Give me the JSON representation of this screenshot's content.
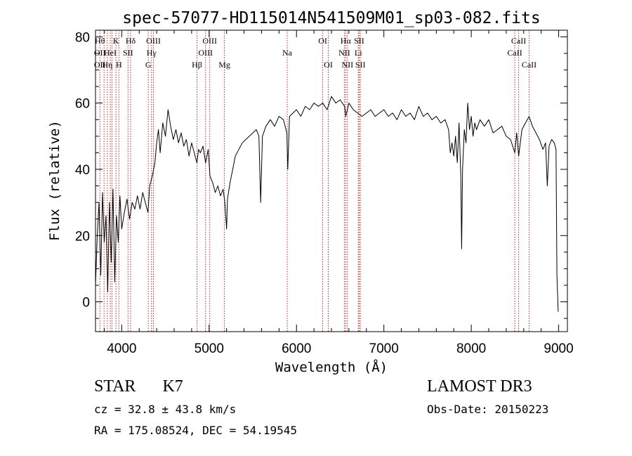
{
  "chart_data": {
    "type": "line",
    "title": "spec-57077-HD115014N541509M01_sp03-082.fits",
    "xlabel": "Wavelength (Å)",
    "ylabel": "Flux (relative)",
    "xlim": [
      3700,
      9100
    ],
    "ylim": [
      -9,
      82
    ],
    "xticks": [
      4000,
      5000,
      6000,
      7000,
      8000,
      9000
    ],
    "yticks": [
      0,
      20,
      40,
      60,
      80
    ],
    "line_color": "#000000",
    "marker_color": "#c0281e",
    "series": [
      {
        "name": "spectrum",
        "points": [
          [
            3700,
            5
          ],
          [
            3720,
            20
          ],
          [
            3740,
            30
          ],
          [
            3760,
            8
          ],
          [
            3780,
            33
          ],
          [
            3800,
            18
          ],
          [
            3820,
            26
          ],
          [
            3840,
            3
          ],
          [
            3860,
            30
          ],
          [
            3880,
            12
          ],
          [
            3900,
            34
          ],
          [
            3920,
            6
          ],
          [
            3940,
            26
          ],
          [
            3960,
            18
          ],
          [
            3980,
            32
          ],
          [
            4000,
            22
          ],
          [
            4030,
            27
          ],
          [
            4060,
            31
          ],
          [
            4090,
            25
          ],
          [
            4120,
            30
          ],
          [
            4150,
            28
          ],
          [
            4180,
            32
          ],
          [
            4210,
            28
          ],
          [
            4240,
            33
          ],
          [
            4270,
            30
          ],
          [
            4300,
            27
          ],
          [
            4320,
            35
          ],
          [
            4350,
            38
          ],
          [
            4380,
            42
          ],
          [
            4400,
            48
          ],
          [
            4420,
            52
          ],
          [
            4440,
            45
          ],
          [
            4470,
            54
          ],
          [
            4500,
            50
          ],
          [
            4530,
            58
          ],
          [
            4560,
            53
          ],
          [
            4590,
            49
          ],
          [
            4620,
            52
          ],
          [
            4650,
            48
          ],
          [
            4680,
            51
          ],
          [
            4710,
            47
          ],
          [
            4740,
            49
          ],
          [
            4770,
            44
          ],
          [
            4800,
            48
          ],
          [
            4830,
            45
          ],
          [
            4860,
            42
          ],
          [
            4880,
            46
          ],
          [
            4900,
            45
          ],
          [
            4930,
            47
          ],
          [
            4960,
            42
          ],
          [
            4990,
            46
          ],
          [
            5010,
            38
          ],
          [
            5040,
            36
          ],
          [
            5070,
            33
          ],
          [
            5100,
            35
          ],
          [
            5130,
            32
          ],
          [
            5160,
            34
          ],
          [
            5180,
            30
          ],
          [
            5200,
            22
          ],
          [
            5210,
            31
          ],
          [
            5240,
            36
          ],
          [
            5270,
            40
          ],
          [
            5300,
            44
          ],
          [
            5340,
            46
          ],
          [
            5380,
            48
          ],
          [
            5420,
            49
          ],
          [
            5460,
            50
          ],
          [
            5500,
            51
          ],
          [
            5540,
            52
          ],
          [
            5570,
            50
          ],
          [
            5590,
            30
          ],
          [
            5610,
            50
          ],
          [
            5650,
            53
          ],
          [
            5700,
            55
          ],
          [
            5750,
            53
          ],
          [
            5800,
            56
          ],
          [
            5850,
            55
          ],
          [
            5890,
            51
          ],
          [
            5900,
            40
          ],
          [
            5920,
            56
          ],
          [
            5960,
            57
          ],
          [
            6000,
            58
          ],
          [
            6050,
            56
          ],
          [
            6100,
            59
          ],
          [
            6150,
            58
          ],
          [
            6200,
            60
          ],
          [
            6250,
            59
          ],
          [
            6300,
            60
          ],
          [
            6350,
            58
          ],
          [
            6400,
            62
          ],
          [
            6450,
            60
          ],
          [
            6500,
            61
          ],
          [
            6550,
            59
          ],
          [
            6563,
            56
          ],
          [
            6600,
            60
          ],
          [
            6650,
            58
          ],
          [
            6700,
            57
          ],
          [
            6750,
            56
          ],
          [
            6800,
            57
          ],
          [
            6850,
            58
          ],
          [
            6900,
            56
          ],
          [
            6950,
            57
          ],
          [
            7000,
            58
          ],
          [
            7050,
            56
          ],
          [
            7100,
            57
          ],
          [
            7150,
            55
          ],
          [
            7200,
            58
          ],
          [
            7250,
            56
          ],
          [
            7300,
            57
          ],
          [
            7350,
            55
          ],
          [
            7400,
            59
          ],
          [
            7450,
            56
          ],
          [
            7500,
            57
          ],
          [
            7550,
            55
          ],
          [
            7600,
            56
          ],
          [
            7650,
            54
          ],
          [
            7700,
            55
          ],
          [
            7740,
            52
          ],
          [
            7760,
            45
          ],
          [
            7780,
            48
          ],
          [
            7800,
            44
          ],
          [
            7820,
            50
          ],
          [
            7840,
            42
          ],
          [
            7860,
            54
          ],
          [
            7880,
            38
          ],
          [
            7890,
            16
          ],
          [
            7900,
            40
          ],
          [
            7920,
            52
          ],
          [
            7940,
            48
          ],
          [
            7960,
            60
          ],
          [
            7980,
            52
          ],
          [
            8000,
            56
          ],
          [
            8020,
            50
          ],
          [
            8040,
            54
          ],
          [
            8060,
            52
          ],
          [
            8100,
            55
          ],
          [
            8150,
            53
          ],
          [
            8200,
            55
          ],
          [
            8250,
            51
          ],
          [
            8300,
            52
          ],
          [
            8350,
            53
          ],
          [
            8400,
            50
          ],
          [
            8450,
            49
          ],
          [
            8498,
            45
          ],
          [
            8520,
            51
          ],
          [
            8542,
            44
          ],
          [
            8580,
            52
          ],
          [
            8620,
            54
          ],
          [
            8662,
            56
          ],
          [
            8700,
            53
          ],
          [
            8740,
            51
          ],
          [
            8780,
            49
          ],
          [
            8820,
            46
          ],
          [
            8850,
            48
          ],
          [
            8870,
            35
          ],
          [
            8890,
            47
          ],
          [
            8920,
            49
          ],
          [
            8950,
            48
          ],
          [
            8970,
            46
          ],
          [
            8980,
            8
          ],
          [
            8995,
            -3
          ]
        ]
      }
    ],
    "lines": [
      {
        "wl": 3750,
        "labels": [
          {
            "text": "Hθ",
            "row": 1
          },
          {
            "text": "OII",
            "row": 2
          },
          {
            "text": "OII",
            "row": 3
          }
        ]
      },
      {
        "wl": 3798,
        "labels": []
      },
      {
        "wl": 3835,
        "labels": [
          {
            "text": "Hη",
            "row": 3
          }
        ]
      },
      {
        "wl": 3869,
        "labels": [
          {
            "text": "HeI",
            "row": 2
          }
        ]
      },
      {
        "wl": 3889,
        "labels": []
      },
      {
        "wl": 3934,
        "labels": [
          {
            "text": "K",
            "row": 1
          }
        ]
      },
      {
        "wl": 3968,
        "labels": [
          {
            "text": "H",
            "row": 3
          }
        ]
      },
      {
        "wl": 4072,
        "labels": [
          {
            "text": "SII",
            "row": 2
          }
        ]
      },
      {
        "wl": 4102,
        "labels": [
          {
            "text": "Hδ",
            "row": 1
          }
        ]
      },
      {
        "wl": 4304,
        "labels": [
          {
            "text": "G",
            "row": 3
          }
        ]
      },
      {
        "wl": 4341,
        "labels": [
          {
            "text": "Hγ",
            "row": 2
          }
        ]
      },
      {
        "wl": 4363,
        "labels": [
          {
            "text": "OIII",
            "row": 1
          }
        ]
      },
      {
        "wl": 4861,
        "labels": [
          {
            "text": "Hβ",
            "row": 3
          }
        ]
      },
      {
        "wl": 4959,
        "labels": [
          {
            "text": "OIII",
            "row": 2
          }
        ]
      },
      {
        "wl": 5007,
        "labels": [
          {
            "text": "OIII",
            "row": 1
          }
        ]
      },
      {
        "wl": 5175,
        "labels": [
          {
            "text": "Mg",
            "row": 3
          }
        ]
      },
      {
        "wl": 5894,
        "labels": [
          {
            "text": "Na",
            "row": 2
          }
        ]
      },
      {
        "wl": 6300,
        "labels": [
          {
            "text": "OI",
            "row": 1
          }
        ]
      },
      {
        "wl": 6364,
        "labels": [
          {
            "text": "OI",
            "row": 3
          }
        ]
      },
      {
        "wl": 6548,
        "labels": [
          {
            "text": "NII",
            "row": 2
          }
        ]
      },
      {
        "wl": 6563,
        "labels": [
          {
            "text": "Hα",
            "row": 1
          }
        ]
      },
      {
        "wl": 6583,
        "labels": [
          {
            "text": "NII",
            "row": 3
          }
        ]
      },
      {
        "wl": 6707,
        "labels": [
          {
            "text": "Li",
            "row": 2
          }
        ]
      },
      {
        "wl": 6717,
        "labels": [
          {
            "text": "SII",
            "row": 1
          }
        ]
      },
      {
        "wl": 6731,
        "labels": [
          {
            "text": "SII",
            "row": 3
          }
        ]
      },
      {
        "wl": 8498,
        "labels": [
          {
            "text": "CaII",
            "row": 2
          }
        ]
      },
      {
        "wl": 8542,
        "labels": [
          {
            "text": "CaII",
            "row": 1
          }
        ]
      },
      {
        "wl": 8662,
        "labels": [
          {
            "text": "CaII",
            "row": 3
          }
        ]
      }
    ]
  },
  "info": {
    "class": "STAR",
    "subclass": "K7",
    "velocity": "cz = 32.8 ± 43.8 km/s",
    "coords": "RA = 175.08524, DEC =  54.19545",
    "survey": "LAMOST DR3",
    "obsdate": "Obs-Date: 20150223"
  }
}
